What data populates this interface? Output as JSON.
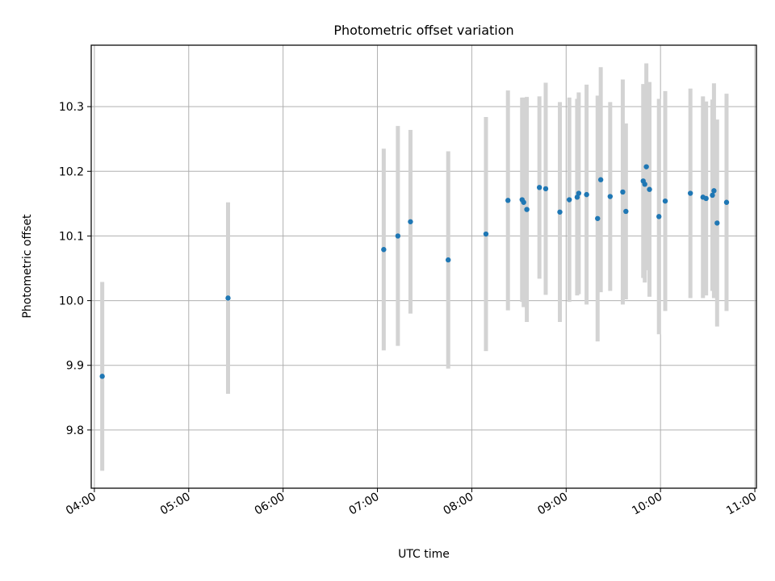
{
  "chart_data": {
    "type": "scatter",
    "title": "Photometric offset variation",
    "xlabel": "UTC time",
    "ylabel": "Photometric offset",
    "x_ticks": [
      "04:00",
      "05:00",
      "06:00",
      "07:00",
      "08:00",
      "09:00",
      "10:00",
      "11:00"
    ],
    "y_ticks": [
      "9.8",
      "9.9",
      "10.0",
      "10.1",
      "10.2",
      "10.3"
    ],
    "xlim": [
      "03:58",
      "11:01"
    ],
    "ylim": [
      9.71,
      10.395
    ],
    "grid": true,
    "marker_color": "#1f77b4",
    "errorbar_color": "#d3d3d3",
    "points": [
      {
        "x": "04:05",
        "y": 9.883,
        "yerr": 0.146
      },
      {
        "x": "05:25",
        "y": 10.004,
        "yerr": 0.148
      },
      {
        "x": "07:04",
        "y": 10.079,
        "yerr": 0.156
      },
      {
        "x": "07:13",
        "y": 10.1,
        "yerr": 0.17
      },
      {
        "x": "07:21",
        "y": 10.122,
        "yerr": 0.142
      },
      {
        "x": "07:45",
        "y": 10.063,
        "yerr": 0.168
      },
      {
        "x": "08:09",
        "y": 10.103,
        "yerr": 0.181
      },
      {
        "x": "08:23",
        "y": 10.155,
        "yerr": 0.17
      },
      {
        "x": "08:32",
        "y": 10.156,
        "yerr": 0.158
      },
      {
        "x": "08:33",
        "y": 10.152,
        "yerr": 0.162
      },
      {
        "x": "08:35",
        "y": 10.141,
        "yerr": 0.174
      },
      {
        "x": "08:43",
        "y": 10.175,
        "yerr": 0.141
      },
      {
        "x": "08:47",
        "y": 10.173,
        "yerr": 0.164
      },
      {
        "x": "08:56",
        "y": 10.137,
        "yerr": 0.17
      },
      {
        "x": "09:02",
        "y": 10.156,
        "yerr": 0.158
      },
      {
        "x": "09:07",
        "y": 10.16,
        "yerr": 0.152
      },
      {
        "x": "09:08",
        "y": 10.166,
        "yerr": 0.156
      },
      {
        "x": "09:13",
        "y": 10.164,
        "yerr": 0.17
      },
      {
        "x": "09:20",
        "y": 10.127,
        "yerr": 0.19
      },
      {
        "x": "09:22",
        "y": 10.187,
        "yerr": 0.174
      },
      {
        "x": "09:28",
        "y": 10.161,
        "yerr": 0.146
      },
      {
        "x": "09:36",
        "y": 10.168,
        "yerr": 0.174
      },
      {
        "x": "09:38",
        "y": 10.138,
        "yerr": 0.136
      },
      {
        "x": "09:49",
        "y": 10.185,
        "yerr": 0.15
      },
      {
        "x": "09:50",
        "y": 10.18,
        "yerr": 0.152
      },
      {
        "x": "09:51",
        "y": 10.207,
        "yerr": 0.16
      },
      {
        "x": "09:53",
        "y": 10.172,
        "yerr": 0.166
      },
      {
        "x": "09:59",
        "y": 10.13,
        "yerr": 0.182
      },
      {
        "x": "10:03",
        "y": 10.154,
        "yerr": 0.17
      },
      {
        "x": "10:19",
        "y": 10.166,
        "yerr": 0.162
      },
      {
        "x": "10:27",
        "y": 10.16,
        "yerr": 0.156
      },
      {
        "x": "10:29",
        "y": 10.158,
        "yerr": 0.15
      },
      {
        "x": "10:33",
        "y": 10.163,
        "yerr": 0.148
      },
      {
        "x": "10:34",
        "y": 10.17,
        "yerr": 0.166
      },
      {
        "x": "10:36",
        "y": 10.12,
        "yerr": 0.16
      },
      {
        "x": "10:42",
        "y": 10.152,
        "yerr": 0.168
      }
    ]
  }
}
